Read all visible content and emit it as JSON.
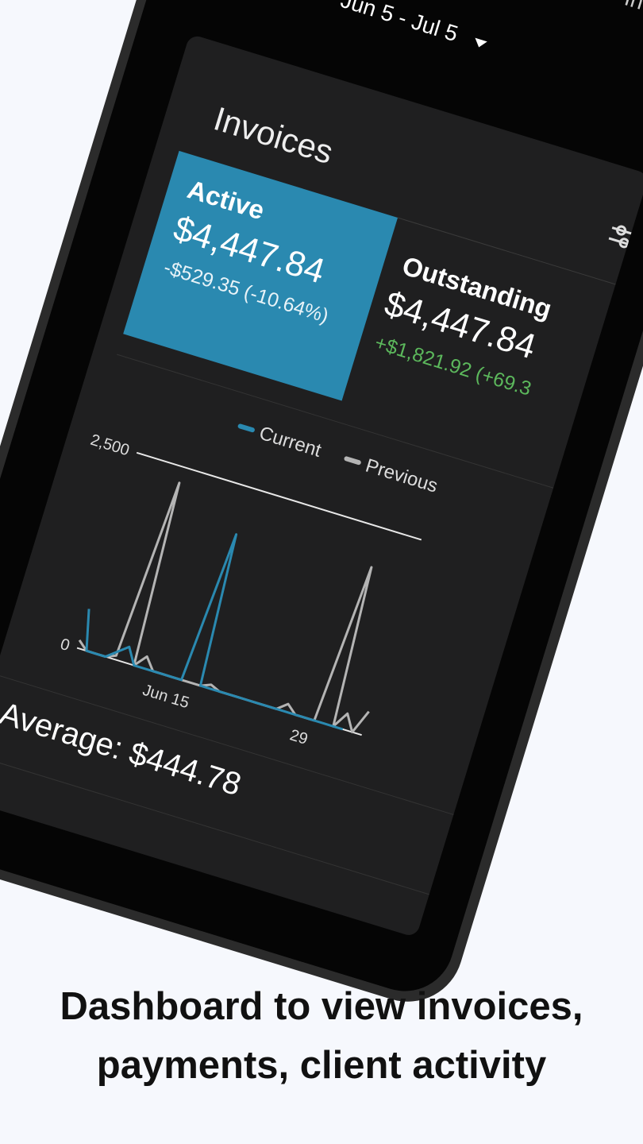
{
  "header": {
    "date_range": "Jun 5 - Jul 5",
    "section": "Invoices"
  },
  "card": {
    "title": "Invoices",
    "active": {
      "label": "Active",
      "amount": "$4,447.84",
      "change": "-$529.35 (-10.64%)"
    },
    "outstanding": {
      "label": "Outstanding",
      "amount": "$4,447.84",
      "change": "+$1,821.92 (+69.3"
    },
    "average": "Average: $444.78"
  },
  "chart_data": {
    "type": "line",
    "categories": [
      null,
      null,
      null,
      null,
      null,
      null,
      null,
      null,
      null,
      null,
      "Jun 15",
      null,
      null,
      null,
      null,
      null,
      null,
      null,
      null,
      null,
      null,
      null,
      null,
      null,
      "29",
      null,
      null,
      null,
      null,
      null,
      null
    ],
    "series": [
      {
        "name": "Current",
        "color": "#2a89b0",
        "values": [
          500,
          0,
          0,
          0,
          100,
          200,
          0,
          0,
          0,
          0,
          0,
          0,
          1900,
          0,
          0,
          0,
          0,
          0,
          0,
          0,
          0,
          0,
          0,
          0,
          0,
          0,
          0,
          0,
          0,
          null,
          null
        ]
      },
      {
        "name": "Previous",
        "color": "#b4b4b4",
        "values": [
          100,
          0,
          0,
          0,
          50,
          2300,
          0,
          150,
          0,
          0,
          0,
          0,
          0,
          0,
          50,
          0,
          0,
          0,
          0,
          0,
          0,
          0,
          100,
          0,
          0,
          0,
          2000,
          0,
          200,
          0,
          300
        ]
      }
    ],
    "ylim": [
      0,
      2500
    ],
    "yticks": [
      0,
      {
        "value": 2500,
        "label": "2,500"
      }
    ]
  },
  "caption": [
    "Dashboard to view invoices,",
    "payments, client activity"
  ]
}
